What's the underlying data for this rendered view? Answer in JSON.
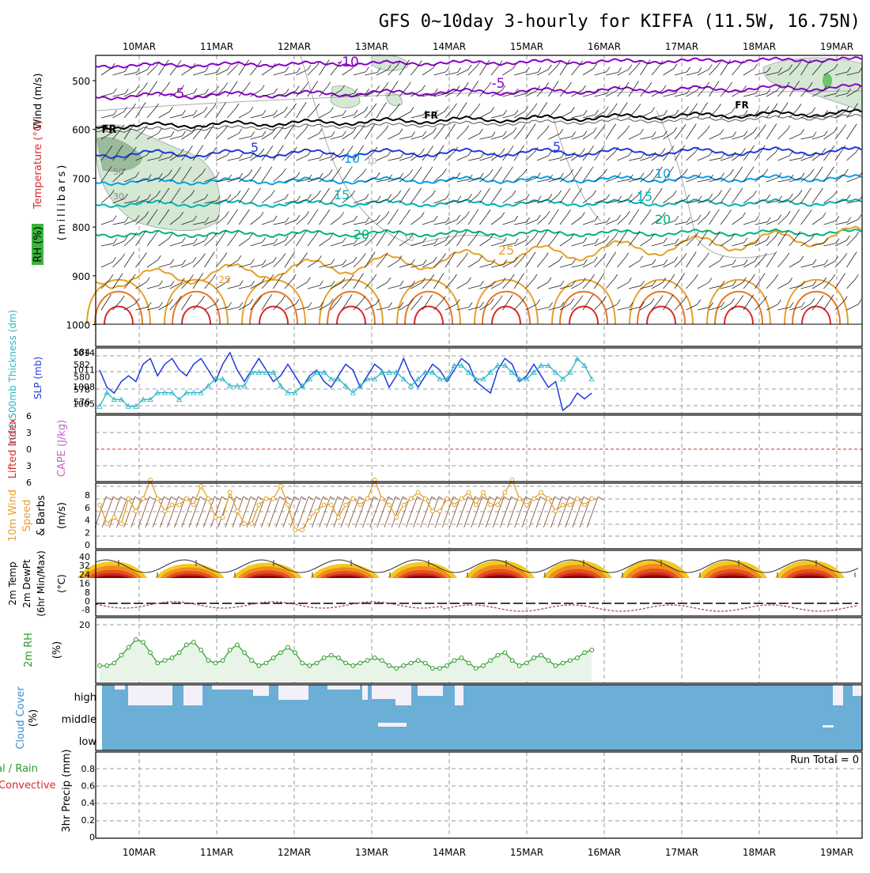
{
  "title": "GFS 0~10day 3-hourly for KIFFA (11.5W, 16.75N)",
  "dates": [
    "10MAR",
    "11MAR",
    "12MAR",
    "13MAR",
    "14MAR",
    "15MAR",
    "16MAR",
    "17MAR",
    "18MAR",
    "19MAR"
  ],
  "colors": {
    "purple": "#8a00c8",
    "black": "#000000",
    "blue": "#1e3cdc",
    "cyan": "#0aa0e6",
    "teal": "#00b4b4",
    "green": "#00b478",
    "orange": "#e6a028",
    "darkorange": "#e67828",
    "red": "#dc2828",
    "cloud": "#6baed6",
    "rh_fill": "#e8f4e8",
    "rh_line": "#2a9a2a",
    "wind_line": "#e6a028",
    "thick_line": "#28b4c8",
    "slp_line": "#1e3cdc"
  },
  "panels": {
    "upper": {
      "ylabel_wind": "Wind (m/s)",
      "ylabel_temp": "Temperature (°C)",
      "ylabel_rh": "RH (%)",
      "ylabel_mb": "(millibars)",
      "yticks": [
        "500",
        "600",
        "700",
        "800",
        "900",
        "1000"
      ],
      "contour_labels": {
        "m10": "-10",
        "m5a": "-5",
        "m5b": "-5",
        "fr1": "FR",
        "fr2": "FR",
        "fr3": "FR",
        "p5a": "5",
        "p5b": "5",
        "p10a": "10",
        "p10b": "10",
        "p15a": "15",
        "p15b": "15",
        "p20a": "20",
        "p20b": "20",
        "p25a": "25",
        "p25b": "25",
        "rh50": "50",
        "rh30": "30",
        "rh10a": "10",
        "rh10b": "10"
      }
    },
    "slp": {
      "ylabel_thick": "1000-500mb Thickness (dm)",
      "ylabel_slp": "SLP (mb)",
      "left_ticks": [
        "584",
        "582",
        "580",
        "578",
        "576"
      ],
      "right_ticks": [
        "1014",
        "1011",
        "1008",
        "1005"
      ]
    },
    "cape": {
      "ylabel_li": "Lifted Index",
      "ylabel_cape": "CAPE (J/kg)",
      "ticks": [
        "6",
        "3",
        "0",
        "3",
        "6"
      ]
    },
    "wind10": {
      "ylabel_1": "10m Wind",
      "ylabel_2": "Speed",
      "ylabel_3": "& Barbs",
      "ylabel_4": "(m/s)",
      "ticks": [
        "8",
        "6",
        "4",
        "2",
        "0"
      ]
    },
    "temp2m": {
      "ylabel_1": "2m Temp",
      "ylabel_2": "2m DewPt",
      "ylabel_3": "(6hr Min/Max)",
      "ylabel_4": "(°C)",
      "ticks": [
        "40",
        "32",
        "24",
        "16",
        "8",
        "0",
        "-8"
      ]
    },
    "rh2m": {
      "ylabel_1": "2m RH",
      "ylabel_2": "(%)",
      "ticks": [
        "20"
      ]
    },
    "cloud": {
      "ylabel_1": "Cloud Cover",
      "ylabel_2": "(%)",
      "levels": [
        "high",
        "middle",
        "low"
      ]
    },
    "precip": {
      "ylabel_1": "tal / Rain",
      "ylabel_2": "Convective",
      "ylabel_3": "3hr Precip (mm)",
      "run_total": "Run Total = 0",
      "ticks": [
        "0.8",
        "0.6",
        "0.4",
        "0.2",
        "0"
      ]
    }
  },
  "chart_data": [
    {
      "type": "line",
      "title": "SLP / 1000-500mb Thickness",
      "x_unit": "3-hourly steps from 9MAR 12Z",
      "series": [
        {
          "name": "SLP (mb)",
          "values": [
            1011,
            1008,
            1007,
            1009,
            1010,
            1009,
            1012,
            1013,
            1010,
            1012,
            1013,
            1011,
            1010,
            1012,
            1013,
            1011,
            1009,
            1012,
            1014,
            1011,
            1009,
            1011,
            1013,
            1011,
            1009,
            1010,
            1012,
            1010,
            1008,
            1010,
            1011,
            1009,
            1008,
            1010,
            1012,
            1011,
            1008,
            1010,
            1012,
            1011,
            1008,
            1010,
            1013,
            1010,
            1008,
            1010,
            1012,
            1011,
            1009,
            1011,
            1013,
            1012,
            1009,
            1008,
            1007,
            1011,
            1013,
            1012,
            1009,
            1010,
            1012,
            1010,
            1008,
            1009,
            1004,
            1005,
            1007,
            1006,
            1007
          ]
        },
        {
          "name": "Thickness (dm)",
          "values": [
            576,
            578,
            577,
            577,
            576,
            576,
            577,
            577,
            578,
            578,
            578,
            577,
            578,
            578,
            578,
            579,
            580,
            580,
            579,
            579,
            579,
            581,
            581,
            581,
            581,
            579,
            578,
            578,
            579,
            580,
            581,
            581,
            580,
            580,
            579,
            578,
            579,
            580,
            580,
            581,
            581,
            581,
            580,
            579,
            580,
            581,
            581,
            580,
            580,
            582,
            582,
            581,
            580,
            580,
            581,
            582,
            582,
            581,
            580,
            580,
            581,
            582,
            582,
            581,
            580,
            581,
            583,
            582,
            580
          ]
        }
      ]
    },
    {
      "type": "line",
      "title": "10m Wind Speed",
      "series": [
        {
          "name": "Speed (m/s)",
          "values": [
            5,
            2,
            3,
            2,
            6,
            4,
            6,
            9,
            6,
            4,
            5,
            5,
            6,
            5,
            8,
            6,
            3,
            3,
            7,
            4,
            2,
            2,
            5,
            6,
            6,
            8,
            5,
            1,
            1,
            3,
            4,
            5,
            5,
            3,
            5,
            6,
            5,
            6,
            9,
            6,
            5,
            3,
            5,
            6,
            7,
            6,
            4,
            4,
            6,
            5,
            6,
            7,
            5,
            7,
            5,
            5,
            7,
            9,
            6,
            5,
            6,
            7,
            6,
            4,
            5,
            5,
            6,
            5,
            6
          ]
        }
      ]
    },
    {
      "type": "line",
      "title": "2m RH",
      "series": [
        {
          "name": "RH (%)",
          "values": [
            4,
            4,
            5,
            8,
            11,
            14,
            13,
            9,
            5,
            6,
            7,
            9,
            12,
            13,
            10,
            6,
            5,
            6,
            10,
            12,
            9,
            6,
            4,
            5,
            7,
            9,
            11,
            9,
            5,
            4,
            5,
            7,
            8,
            7,
            5,
            4,
            5,
            6,
            7,
            6,
            4,
            3,
            4,
            5,
            6,
            5,
            3,
            3,
            4,
            6,
            7,
            5,
            3,
            4,
            6,
            8,
            9,
            6,
            4,
            5,
            7,
            8,
            6,
            4,
            5,
            6,
            7,
            9,
            10
          ]
        }
      ]
    },
    {
      "type": "bar",
      "title": "3hr Precip",
      "ylabel": "3hr Precip (mm)",
      "ylim": [
        0,
        0.9
      ],
      "values": []
    }
  ]
}
